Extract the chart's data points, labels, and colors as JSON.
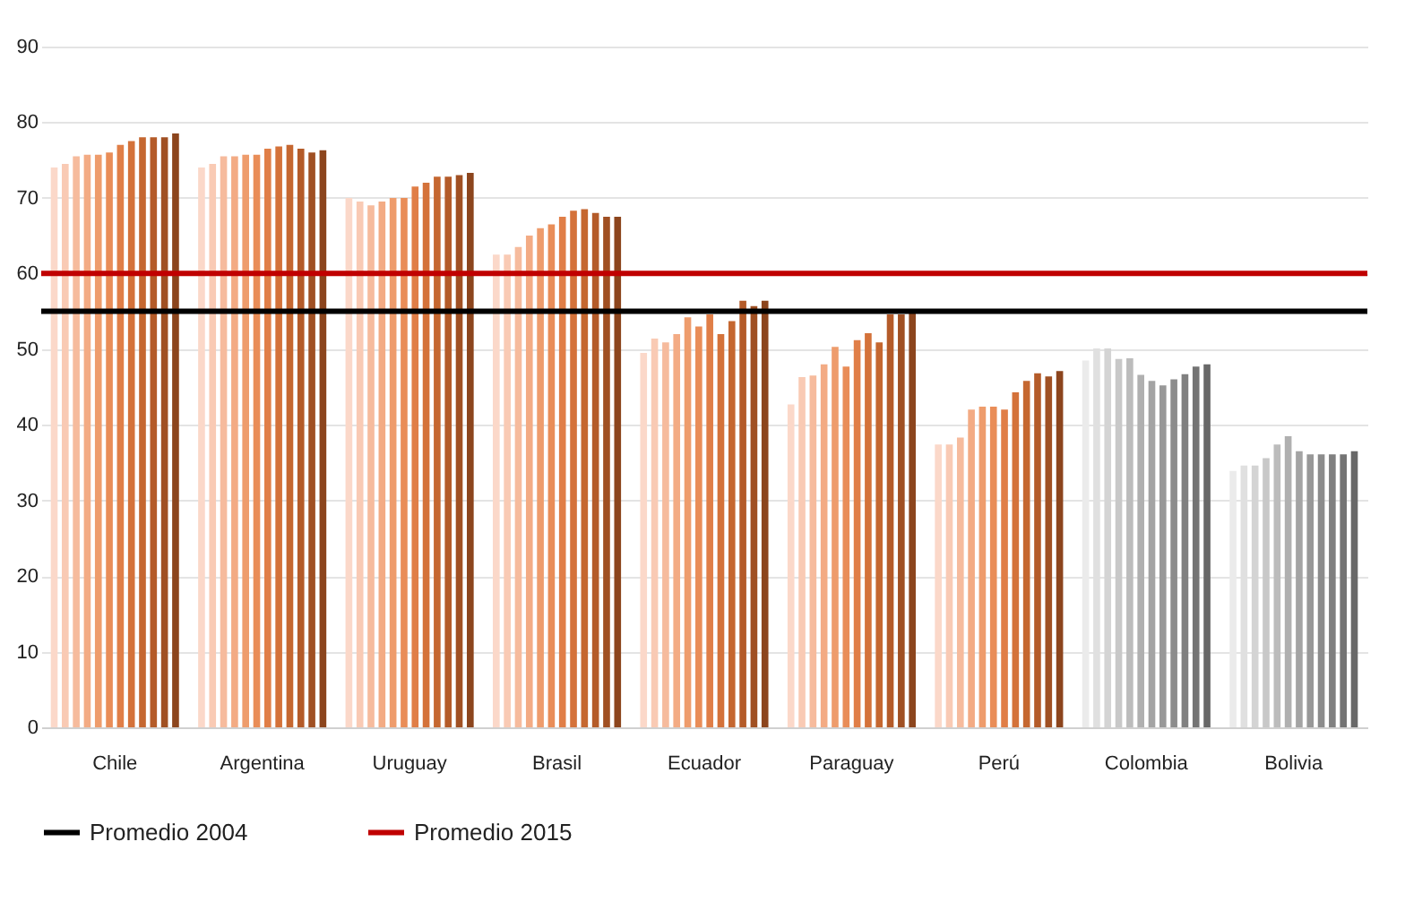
{
  "chart_data": {
    "type": "bar",
    "categories": [
      "Chile",
      "Argentina",
      "Uruguay",
      "Brasil",
      "Ecuador",
      "Paraguay",
      "Perú",
      "Colombia",
      "Bolivia"
    ],
    "series": [
      {
        "colors": [
          "#fbd8c9",
          "#fbd8c9",
          "#fbd8c9",
          "#fbd8c9",
          "#fbd8c9",
          "#fbd8c9",
          "#fbd8c9",
          "#ebebeb",
          "#ebebeb"
        ],
        "values": [
          74,
          74,
          70,
          62.5,
          49.5,
          42.7,
          37.4,
          48.5,
          33.9
        ]
      },
      {
        "colors": [
          "#f9cab4",
          "#f9cab4",
          "#f9cab4",
          "#f9cab4",
          "#f9cab4",
          "#f9cab4",
          "#f9cab4",
          "#e0e0e0",
          "#e0e0e0"
        ],
        "values": [
          74.5,
          74.5,
          69.5,
          62.5,
          51.4,
          46.3,
          37.4,
          50.1,
          34.6
        ]
      },
      {
        "colors": [
          "#f6bb9d",
          "#f6bb9d",
          "#f6bb9d",
          "#f6bb9d",
          "#f6bb9d",
          "#f6bb9d",
          "#f6bb9d",
          "#d4d4d4",
          "#d4d4d4"
        ],
        "values": [
          75.5,
          75.5,
          69,
          63.5,
          50.9,
          46.5,
          38.3,
          50.1,
          34.6
        ]
      },
      {
        "colors": [
          "#f3ab84",
          "#f3ab84",
          "#f3ab84",
          "#f3ab84",
          "#f3ab84",
          "#f3ab84",
          "#f3ab84",
          "#c8c8c8",
          "#c8c8c8"
        ],
        "values": [
          75.7,
          75.5,
          69.5,
          65,
          52,
          48,
          42,
          48.7,
          35.6
        ]
      },
      {
        "colors": [
          "#ee9c6c",
          "#ee9c6c",
          "#ee9c6c",
          "#ee9c6c",
          "#ee9c6c",
          "#ee9c6c",
          "#ee9c6c",
          "#bcbcbc",
          "#bcbcbc"
        ],
        "values": [
          75.7,
          75.7,
          70,
          66,
          54.2,
          50.3,
          42.4,
          48.8,
          37.4
        ]
      },
      {
        "colors": [
          "#e98d58",
          "#e98d58",
          "#e98d58",
          "#e98d58",
          "#e98d58",
          "#e98d58",
          "#e98d58",
          "#b0b0b0",
          "#b0b0b0"
        ],
        "values": [
          76,
          75.7,
          70,
          66.5,
          53,
          47.7,
          42.4,
          46.6,
          38.5
        ]
      },
      {
        "colors": [
          "#e07e47",
          "#e07e47",
          "#e07e47",
          "#e07e47",
          "#e07e47",
          "#e07e47",
          "#e07e47",
          "#a4a4a4",
          "#a4a4a4"
        ],
        "values": [
          77,
          76.5,
          71.5,
          67.5,
          54.6,
          51.2,
          42,
          45.8,
          36.5
        ]
      },
      {
        "colors": [
          "#d4723a",
          "#d4723a",
          "#d4723a",
          "#d4723a",
          "#d4723a",
          "#d4723a",
          "#d4723a",
          "#989898",
          "#989898"
        ],
        "values": [
          77.5,
          76.8,
          72,
          68.3,
          52,
          52.1,
          44.3,
          45.2,
          36.1
        ]
      },
      {
        "colors": [
          "#c56730",
          "#c56730",
          "#c56730",
          "#c56730",
          "#c56730",
          "#c56730",
          "#c56730",
          "#8c8c8c",
          "#8c8c8c"
        ],
        "values": [
          78,
          77,
          72.8,
          68.5,
          53.7,
          50.9,
          45.8,
          46,
          36.1
        ]
      },
      {
        "colors": [
          "#b45b29",
          "#b45b29",
          "#b45b29",
          "#b45b29",
          "#b45b29",
          "#b45b29",
          "#b45b29",
          "#808080",
          "#808080"
        ],
        "values": [
          78,
          76.5,
          72.8,
          68,
          56.4,
          54.6,
          46.8,
          46.7,
          36.1
        ]
      },
      {
        "colors": [
          "#a05023",
          "#a05023",
          "#a05023",
          "#a05023",
          "#a05023",
          "#a05023",
          "#a05023",
          "#747474",
          "#747474"
        ],
        "values": [
          78,
          76,
          73,
          67.5,
          55.7,
          54.6,
          46.4,
          47.7,
          36.1
        ]
      },
      {
        "colors": [
          "#8c451d",
          "#8c451d",
          "#8c451d",
          "#8c451d",
          "#8c451d",
          "#8c451d",
          "#8c451d",
          "#686868",
          "#686868"
        ],
        "values": [
          78.5,
          76.3,
          73.3,
          67.5,
          56.4,
          55.3,
          47.1,
          48,
          36.5
        ]
      }
    ],
    "ylim": [
      0,
      90
    ],
    "yticks": [
      0,
      10,
      20,
      30,
      40,
      50,
      60,
      70,
      80,
      90
    ],
    "grid": "y",
    "legend": "bottom",
    "ref_lines": [
      {
        "axis": "y",
        "value": 55,
        "label": "Promedio 2004",
        "color": "#000000"
      },
      {
        "axis": "y",
        "value": 60,
        "label": "Promedio 2015",
        "color": "#c00000"
      }
    ]
  }
}
